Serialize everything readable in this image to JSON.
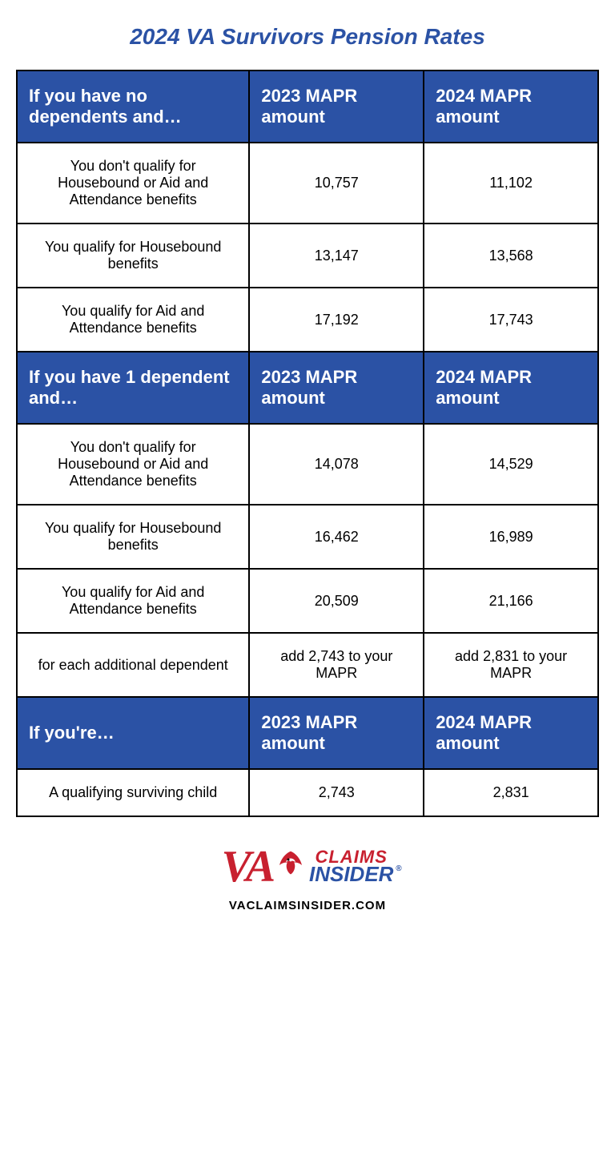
{
  "title": "2024 VA Survivors Pension Rates",
  "colors": {
    "header_bg": "#2b52a5",
    "header_text": "#ffffff",
    "cell_bg": "#ffffff",
    "cell_text": "#000000",
    "border": "#000000",
    "title_color": "#2b52a5",
    "logo_red": "#c8202f",
    "logo_blue": "#2b52a5"
  },
  "typography": {
    "title_fontsize": 28,
    "header_fontsize": 22,
    "cell_fontsize": 18
  },
  "sections": [
    {
      "header": [
        "If you have no dependents and…",
        "2023 MAPR amount",
        "2024 MAPR amount"
      ],
      "rows": [
        [
          "You don't qualify for Housebound or Aid and Attendance benefits",
          "10,757",
          "11,102"
        ],
        [
          "You qualify for Housebound benefits",
          "13,147",
          "13,568"
        ],
        [
          "You qualify for Aid and Attendance benefits",
          "17,192",
          "17,743"
        ]
      ]
    },
    {
      "header": [
        "If you have 1 dependent and…",
        "2023 MAPR amount",
        "2024 MAPR amount"
      ],
      "rows": [
        [
          "You don't qualify for Housebound or Aid and Attendance benefits",
          "14,078",
          "14,529"
        ],
        [
          "You qualify for Housebound benefits",
          "16,462",
          "16,989"
        ],
        [
          "You qualify for Aid and Attendance benefits",
          "20,509",
          "21,166"
        ],
        [
          "for each additional dependent",
          "add 2,743 to your MAPR",
          "add 2,831 to your MAPR"
        ]
      ]
    },
    {
      "header": [
        "If you're…",
        "2023 MAPR amount",
        "2024 MAPR amount"
      ],
      "rows": [
        [
          "A qualifying surviving child",
          "2,743",
          "2,831"
        ]
      ]
    }
  ],
  "logo": {
    "va": "VA",
    "claims": "CLAIMS",
    "insider": "INSIDER"
  },
  "site_url": "VACLAIMSINSIDER.COM"
}
